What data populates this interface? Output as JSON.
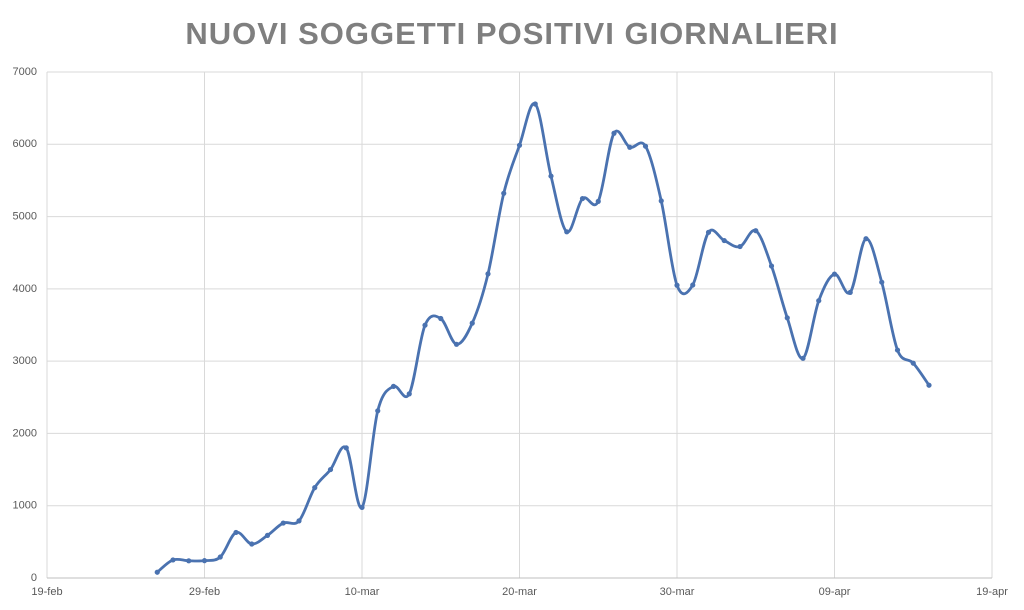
{
  "chart_data": {
    "type": "line",
    "title": "NUOVI SOGGETTI POSITIVI GIORNALIERI",
    "x": [
      "26-feb",
      "27-feb",
      "28-feb",
      "29-feb",
      "01-mar",
      "02-mar",
      "03-mar",
      "04-mar",
      "05-mar",
      "06-mar",
      "07-mar",
      "08-mar",
      "09-mar",
      "10-mar",
      "11-mar",
      "12-mar",
      "13-mar",
      "14-mar",
      "15-mar",
      "16-mar",
      "17-mar",
      "18-mar",
      "19-mar",
      "20-mar",
      "21-mar",
      "22-mar",
      "23-mar",
      "24-mar",
      "25-mar",
      "26-mar",
      "27-mar",
      "28-mar",
      "29-mar",
      "30-mar",
      "31-mar",
      "01-apr",
      "02-apr",
      "03-apr",
      "04-apr",
      "05-apr",
      "06-apr",
      "07-apr",
      "08-apr",
      "09-apr",
      "10-apr",
      "11-apr",
      "12-apr",
      "13-apr",
      "14-apr",
      "15-apr"
    ],
    "series": [
      {
        "color": "#4a72b0",
        "values": [
          80,
          250,
          238,
          240,
          290,
          630,
          470,
          590,
          760,
          790,
          1250,
          1500,
          1800,
          977,
          2313,
          2651,
          2547,
          3497,
          3590,
          3233,
          3526,
          4207,
          5322,
          5986,
          6557,
          5560,
          4789,
          5249,
          5210,
          6153,
          5959,
          5974,
          5217,
          4050,
          4053,
          4782,
          4668,
          4585,
          4805,
          4316,
          3599,
          3039,
          3836,
          4204,
          3951,
          4694,
          4092,
          3153,
          2972,
          2667
        ]
      }
    ],
    "xlim": [
      "19-feb",
      "19-apr"
    ],
    "xticks": [
      "19-feb",
      "29-feb",
      "10-mar",
      "20-mar",
      "30-mar",
      "09-apr",
      "19-apr"
    ],
    "ylim": [
      0,
      7000
    ],
    "yticks": [
      0,
      1000,
      2000,
      3000,
      4000,
      5000,
      6000,
      7000
    ],
    "grid": true
  }
}
